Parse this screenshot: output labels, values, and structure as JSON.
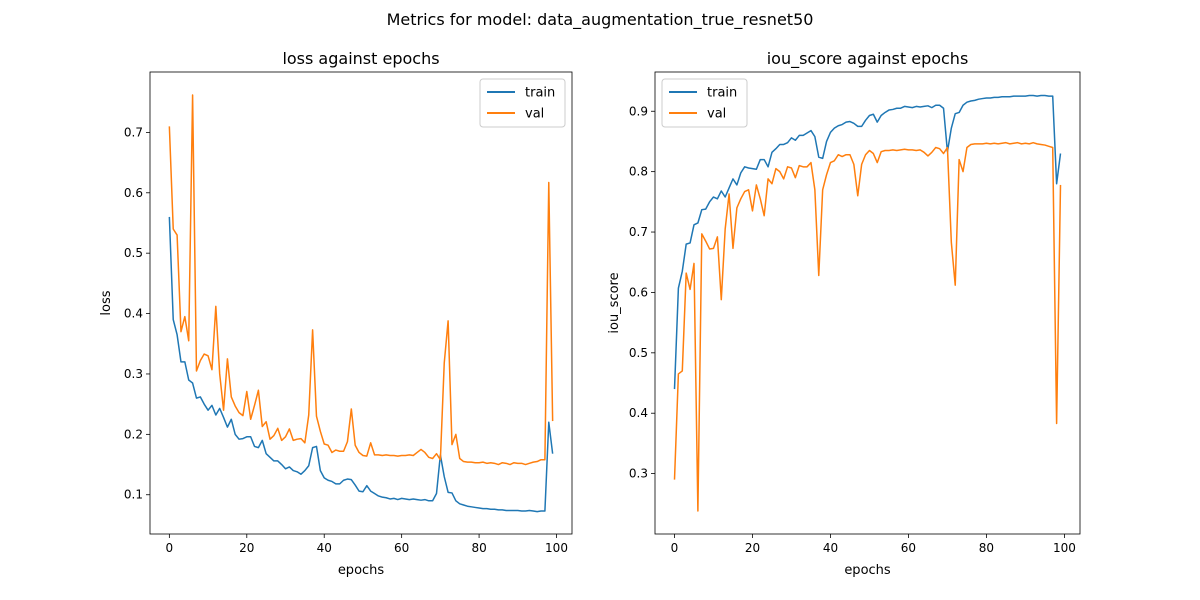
{
  "figure": {
    "title": "Metrics for model: data_augmentation_true_resnet50"
  },
  "colors": {
    "train": "#1f77b4",
    "val": "#ff7f0e"
  },
  "chart_data": [
    {
      "type": "line",
      "title": "loss against epochs",
      "xlabel": "epochs",
      "ylabel": "loss",
      "xlim": [
        -5,
        104
      ],
      "ylim": [
        0.035,
        0.8
      ],
      "xticks": [
        0,
        20,
        40,
        60,
        80,
        100
      ],
      "yticks": [
        0.1,
        0.2,
        0.3,
        0.4,
        0.5,
        0.6,
        0.7
      ],
      "legend_position": "upper right",
      "series": [
        {
          "name": "train",
          "color_key": "train",
          "values": [
            0.56,
            0.39,
            0.365,
            0.32,
            0.32,
            0.29,
            0.285,
            0.26,
            0.262,
            0.25,
            0.24,
            0.248,
            0.232,
            0.243,
            0.228,
            0.212,
            0.225,
            0.2,
            0.192,
            0.193,
            0.196,
            0.196,
            0.18,
            0.178,
            0.19,
            0.168,
            0.162,
            0.156,
            0.156,
            0.15,
            0.143,
            0.146,
            0.14,
            0.138,
            0.134,
            0.14,
            0.148,
            0.178,
            0.18,
            0.14,
            0.128,
            0.124,
            0.122,
            0.118,
            0.118,
            0.124,
            0.126,
            0.125,
            0.116,
            0.106,
            0.105,
            0.115,
            0.106,
            0.102,
            0.098,
            0.096,
            0.095,
            0.093,
            0.094,
            0.092,
            0.094,
            0.093,
            0.092,
            0.093,
            0.092,
            0.091,
            0.092,
            0.09,
            0.09,
            0.102,
            0.166,
            0.13,
            0.104,
            0.103,
            0.09,
            0.085,
            0.083,
            0.081,
            0.08,
            0.079,
            0.078,
            0.077,
            0.077,
            0.076,
            0.076,
            0.075,
            0.075,
            0.074,
            0.074,
            0.074,
            0.074,
            0.073,
            0.073,
            0.074,
            0.073,
            0.072,
            0.073,
            0.073,
            0.22,
            0.168
          ]
        },
        {
          "name": "val",
          "color_key": "val",
          "values": [
            0.71,
            0.54,
            0.53,
            0.37,
            0.395,
            0.355,
            0.762,
            0.305,
            0.322,
            0.333,
            0.33,
            0.307,
            0.412,
            0.3,
            0.24,
            0.325,
            0.262,
            0.247,
            0.236,
            0.231,
            0.271,
            0.225,
            0.248,
            0.273,
            0.213,
            0.221,
            0.192,
            0.198,
            0.21,
            0.19,
            0.196,
            0.209,
            0.19,
            0.192,
            0.193,
            0.186,
            0.232,
            0.373,
            0.23,
            0.205,
            0.184,
            0.182,
            0.17,
            0.174,
            0.172,
            0.172,
            0.188,
            0.242,
            0.182,
            0.17,
            0.165,
            0.164,
            0.186,
            0.166,
            0.166,
            0.165,
            0.166,
            0.165,
            0.165,
            0.164,
            0.165,
            0.165,
            0.166,
            0.165,
            0.17,
            0.175,
            0.17,
            0.162,
            0.16,
            0.168,
            0.158,
            0.318,
            0.388,
            0.183,
            0.2,
            0.16,
            0.155,
            0.154,
            0.154,
            0.153,
            0.153,
            0.154,
            0.152,
            0.153,
            0.152,
            0.15,
            0.153,
            0.152,
            0.15,
            0.153,
            0.152,
            0.152,
            0.15,
            0.152,
            0.154,
            0.155,
            0.158,
            0.158,
            0.617,
            0.222
          ]
        }
      ]
    },
    {
      "type": "line",
      "title": "iou_score against epochs",
      "xlabel": "epochs",
      "ylabel": "iou_score",
      "xlim": [
        -5,
        104
      ],
      "ylim": [
        0.2,
        0.965
      ],
      "xticks": [
        0,
        20,
        40,
        60,
        80,
        100
      ],
      "yticks": [
        0.3,
        0.4,
        0.5,
        0.6,
        0.7,
        0.8,
        0.9
      ],
      "legend_position": "upper left",
      "series": [
        {
          "name": "train",
          "color_key": "train",
          "values": [
            0.44,
            0.607,
            0.635,
            0.68,
            0.682,
            0.712,
            0.715,
            0.737,
            0.738,
            0.75,
            0.758,
            0.755,
            0.768,
            0.758,
            0.773,
            0.788,
            0.778,
            0.798,
            0.808,
            0.806,
            0.805,
            0.804,
            0.82,
            0.82,
            0.808,
            0.832,
            0.838,
            0.845,
            0.845,
            0.848,
            0.856,
            0.852,
            0.86,
            0.86,
            0.864,
            0.868,
            0.858,
            0.824,
            0.822,
            0.85,
            0.865,
            0.872,
            0.876,
            0.878,
            0.882,
            0.883,
            0.88,
            0.875,
            0.875,
            0.885,
            0.893,
            0.895,
            0.882,
            0.893,
            0.898,
            0.902,
            0.903,
            0.905,
            0.905,
            0.908,
            0.907,
            0.906,
            0.908,
            0.907,
            0.908,
            0.909,
            0.906,
            0.91,
            0.91,
            0.905,
            0.833,
            0.872,
            0.896,
            0.898,
            0.91,
            0.915,
            0.917,
            0.918,
            0.92,
            0.921,
            0.922,
            0.922,
            0.923,
            0.923,
            0.924,
            0.924,
            0.924,
            0.925,
            0.925,
            0.925,
            0.925,
            0.926,
            0.926,
            0.925,
            0.926,
            0.926,
            0.925,
            0.925,
            0.78,
            0.83
          ]
        },
        {
          "name": "val",
          "color_key": "val",
          "values": [
            0.29,
            0.465,
            0.47,
            0.632,
            0.605,
            0.648,
            0.238,
            0.697,
            0.685,
            0.672,
            0.673,
            0.692,
            0.588,
            0.705,
            0.763,
            0.673,
            0.74,
            0.755,
            0.767,
            0.77,
            0.735,
            0.778,
            0.755,
            0.727,
            0.788,
            0.78,
            0.805,
            0.8,
            0.788,
            0.808,
            0.806,
            0.79,
            0.81,
            0.808,
            0.808,
            0.815,
            0.77,
            0.628,
            0.77,
            0.795,
            0.815,
            0.818,
            0.828,
            0.825,
            0.828,
            0.828,
            0.812,
            0.76,
            0.812,
            0.828,
            0.835,
            0.83,
            0.815,
            0.833,
            0.835,
            0.835,
            0.836,
            0.835,
            0.836,
            0.837,
            0.836,
            0.836,
            0.835,
            0.836,
            0.832,
            0.826,
            0.832,
            0.84,
            0.838,
            0.83,
            0.84,
            0.683,
            0.612,
            0.82,
            0.8,
            0.84,
            0.845,
            0.846,
            0.846,
            0.846,
            0.847,
            0.846,
            0.847,
            0.846,
            0.847,
            0.848,
            0.846,
            0.847,
            0.848,
            0.846,
            0.847,
            0.846,
            0.848,
            0.846,
            0.845,
            0.844,
            0.842,
            0.84,
            0.383,
            0.778
          ]
        }
      ]
    }
  ]
}
